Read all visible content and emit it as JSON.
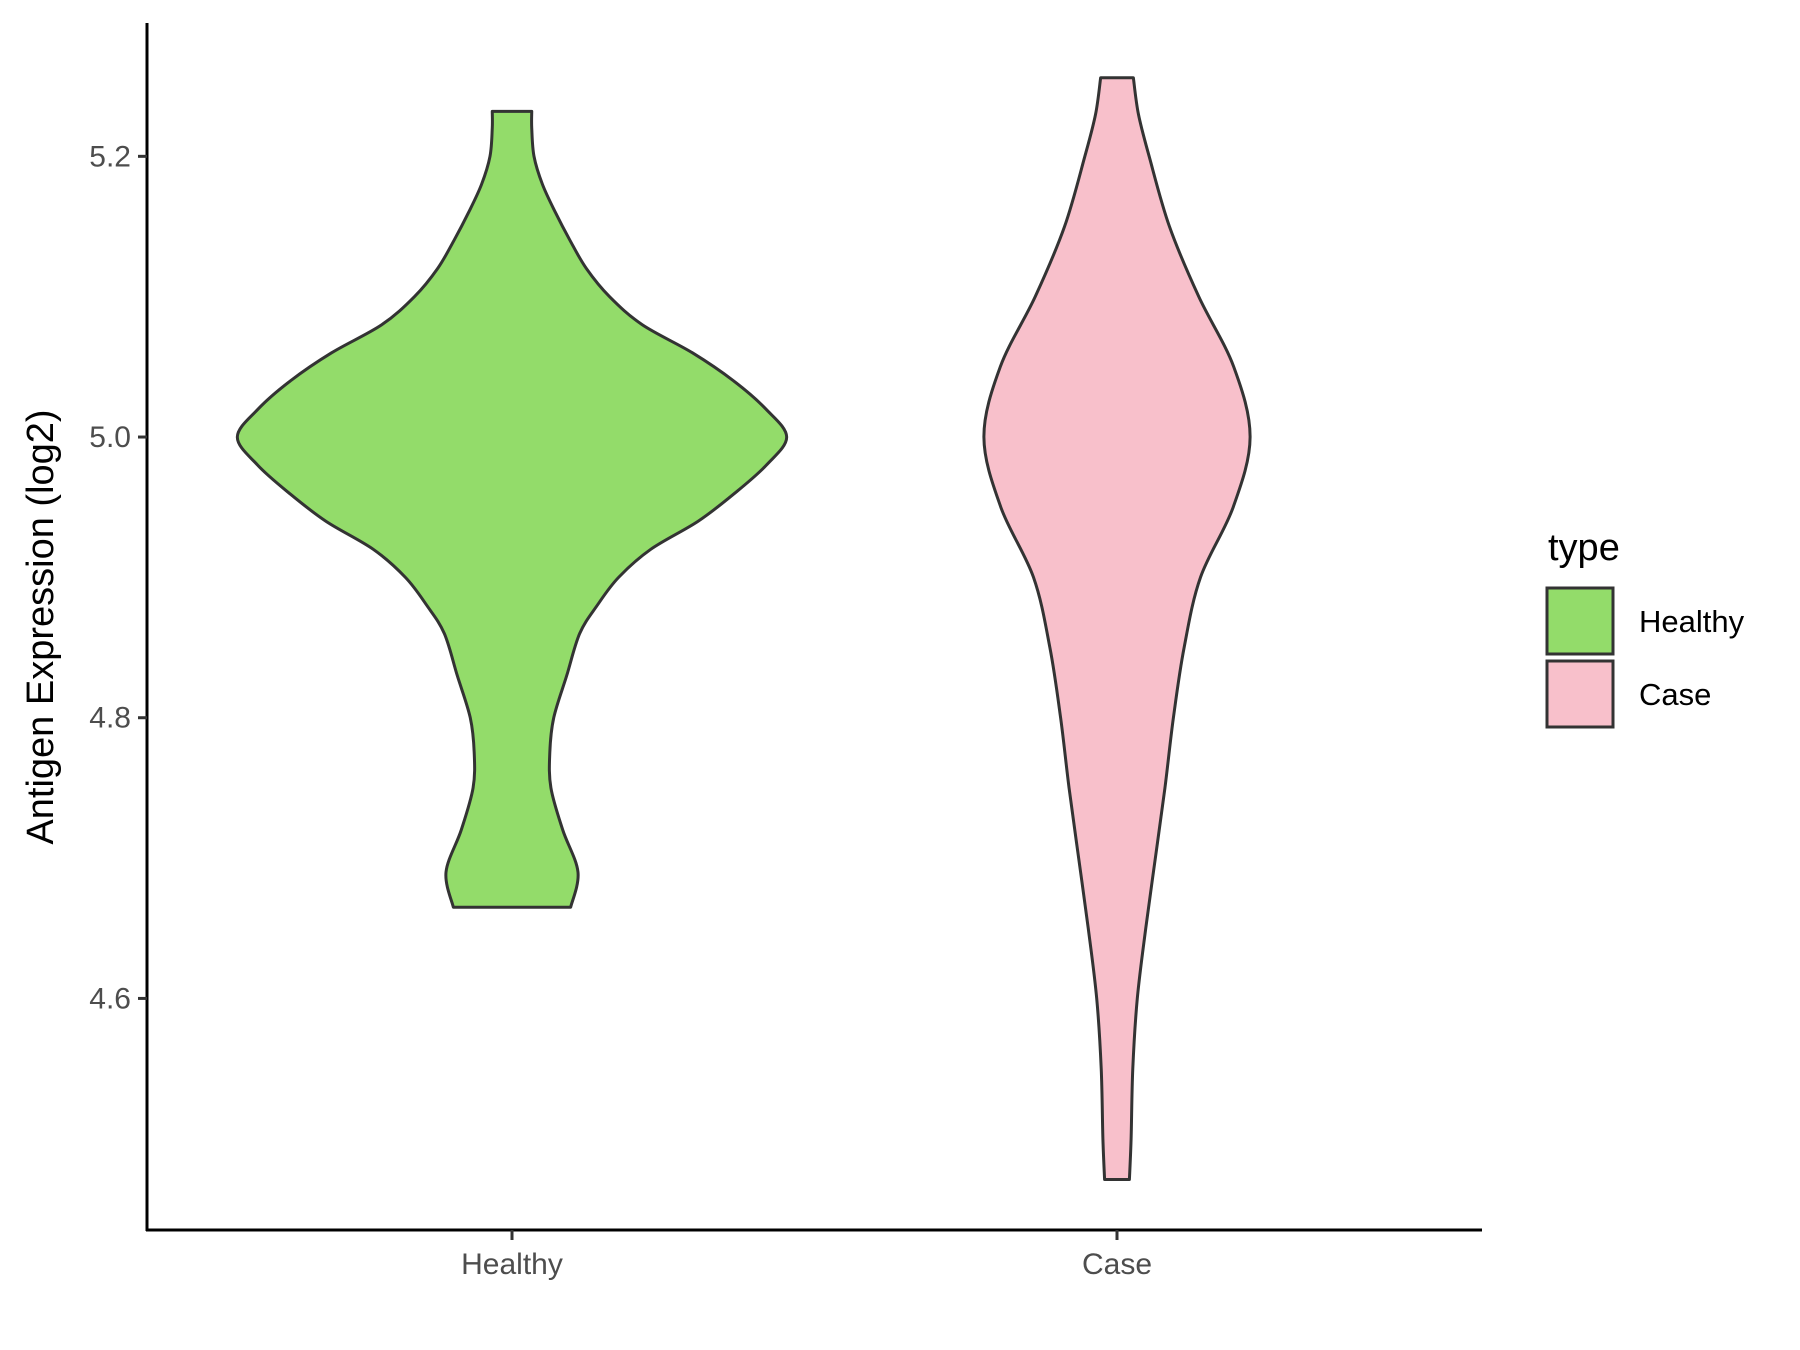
{
  "chart_data": {
    "type": "violin",
    "ylabel": "Antigen Expression (log2)",
    "xlabel": "",
    "categories": [
      "Healthy",
      "Case"
    ],
    "yticks": [
      4.6,
      4.8,
      5.0,
      5.2
    ],
    "yticks_text": [
      "4.6",
      "4.8",
      "5.0",
      "5.2"
    ],
    "ylim": [
      4.435,
      5.295
    ],
    "grid": false,
    "legend": {
      "title": "type",
      "position": "right",
      "entries": [
        {
          "label": "Healthy",
          "color": "#93dc6a"
        },
        {
          "label": "Case",
          "color": "#f8c0cb"
        }
      ]
    },
    "series": [
      {
        "name": "Healthy",
        "color": "#93dc6a",
        "min": 4.665,
        "max": 5.232,
        "density": [
          [
            4.665,
            0.104
          ],
          [
            4.69,
            0.117
          ],
          [
            4.72,
            0.09
          ],
          [
            4.75,
            0.069
          ],
          [
            4.775,
            0.067
          ],
          [
            4.8,
            0.074
          ],
          [
            4.83,
            0.097
          ],
          [
            4.86,
            0.12
          ],
          [
            4.88,
            0.151
          ],
          [
            4.9,
            0.189
          ],
          [
            4.92,
            0.246
          ],
          [
            4.94,
            0.33
          ],
          [
            4.96,
            0.395
          ],
          [
            4.98,
            0.451
          ],
          [
            5.0,
            0.487
          ],
          [
            5.02,
            0.45
          ],
          [
            5.04,
            0.393
          ],
          [
            5.06,
            0.32
          ],
          [
            5.08,
            0.231
          ],
          [
            5.1,
            0.173
          ],
          [
            5.12,
            0.132
          ],
          [
            5.14,
            0.103
          ],
          [
            5.16,
            0.077
          ],
          [
            5.18,
            0.054
          ],
          [
            5.2,
            0.039
          ],
          [
            5.22,
            0.035
          ],
          [
            5.232,
            0.035
          ]
        ]
      },
      {
        "name": "Case",
        "color": "#f8c0cb",
        "min": 4.471,
        "max": 5.256,
        "density": [
          [
            4.471,
            0.022
          ],
          [
            4.5,
            0.025
          ],
          [
            4.55,
            0.028
          ],
          [
            4.6,
            0.036
          ],
          [
            4.65,
            0.051
          ],
          [
            4.7,
            0.068
          ],
          [
            4.75,
            0.085
          ],
          [
            4.8,
            0.1
          ],
          [
            4.85,
            0.119
          ],
          [
            4.9,
            0.148
          ],
          [
            4.95,
            0.206
          ],
          [
            5.0,
            0.236
          ],
          [
            5.05,
            0.207
          ],
          [
            5.1,
            0.145
          ],
          [
            5.15,
            0.093
          ],
          [
            5.2,
            0.057
          ],
          [
            5.23,
            0.038
          ],
          [
            5.256,
            0.029
          ]
        ]
      }
    ]
  }
}
